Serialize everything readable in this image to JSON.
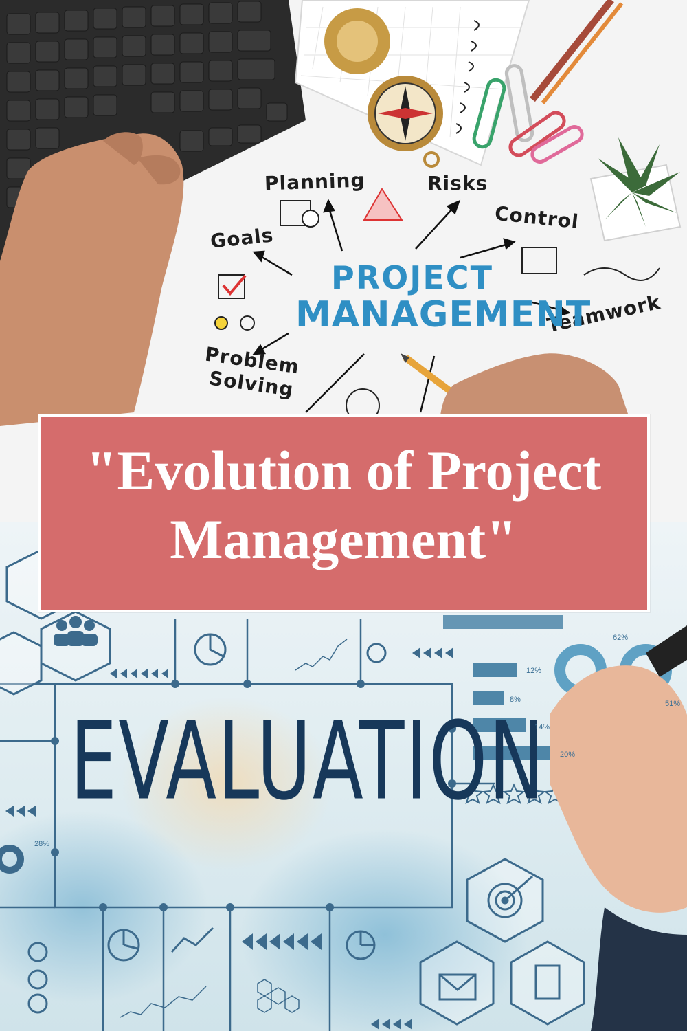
{
  "top_photo": {
    "center_title_line1": "PROJECT",
    "center_title_line2": "MANAGEMENT",
    "labels": {
      "planning": "Planning",
      "risks": "Risks",
      "goals": "Goals",
      "control": "Control",
      "teamwork": "Teamwork",
      "problem_solving_line1": "Problem",
      "problem_solving_line2": "Solving"
    },
    "colors": {
      "title_blue": "#2f8fc4",
      "keyboard": "#2a2a2a",
      "background": "#f4f4f4"
    }
  },
  "banner": {
    "line1": "\"Evolution of Project",
    "line2": "Management\"",
    "background_color": "#d56c6c",
    "text_color": "#ffffff"
  },
  "bottom_photo": {
    "headline": "EVALUATION",
    "percentages": [
      "12%",
      "8%",
      "14%",
      "20%",
      "62%",
      "51%",
      "28%"
    ],
    "colors": {
      "headline": "#17385a",
      "lines": "#3c6a8c"
    }
  }
}
